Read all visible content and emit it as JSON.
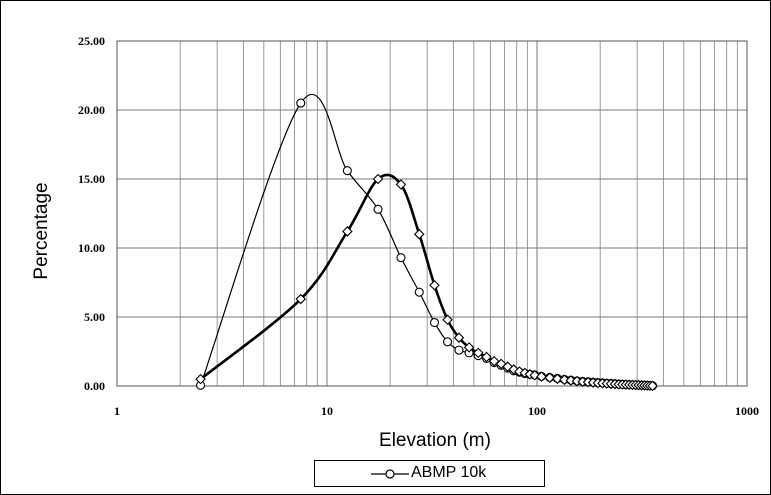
{
  "chart_data": {
    "type": "line",
    "title": "",
    "xlabel": "Elevation (m)",
    "ylabel": "Percentage",
    "x_scale": "log",
    "xlim": [
      1,
      1000
    ],
    "ylim": [
      0,
      25
    ],
    "x_ticks": [
      "1",
      "10",
      "100",
      "1000"
    ],
    "y_ticks": [
      "0.00",
      "5.00",
      "10.00",
      "15.00",
      "20.00",
      "25.00"
    ],
    "grid": true,
    "legend_position": "bottom",
    "series": [
      {
        "name": "ABMP 10k",
        "marker": "circle",
        "line": "thin",
        "x": [
          2.5,
          7.5,
          12.5,
          17.5,
          22.5,
          27.5,
          32.5,
          37.5,
          42.5,
          47.5,
          52.5,
          57.5,
          62.5,
          67.5,
          72.5,
          77.5,
          82.5,
          87.5,
          92.5,
          97.5,
          105,
          115,
          125,
          135,
          145,
          155,
          165,
          175,
          185,
          195,
          205,
          215,
          225,
          235,
          245,
          255,
          265,
          275,
          285,
          295,
          305,
          315,
          325,
          335,
          345,
          355
        ],
        "y": [
          0.05,
          20.5,
          15.6,
          12.8,
          9.3,
          6.8,
          4.6,
          3.2,
          2.6,
          2.4,
          2.2,
          2.0,
          1.7,
          1.5,
          1.3,
          1.1,
          1.0,
          0.9,
          0.85,
          0.8,
          0.7,
          0.62,
          0.55,
          0.48,
          0.42,
          0.37,
          0.33,
          0.3,
          0.27,
          0.24,
          0.22,
          0.2,
          0.18,
          0.16,
          0.14,
          0.12,
          0.11,
          0.1,
          0.09,
          0.08,
          0.07,
          0.06,
          0.05,
          0.04,
          0.03,
          0.02
        ]
      },
      {
        "name": "",
        "marker": "diamond",
        "line": "thick",
        "x": [
          2.5,
          7.5,
          12.5,
          17.5,
          22.5,
          27.5,
          32.5,
          37.5,
          42.5,
          47.5,
          52.5,
          57.5,
          62.5,
          67.5,
          72.5,
          77.5,
          82.5,
          87.5,
          92.5,
          97.5,
          105,
          115,
          125,
          135,
          145,
          155,
          165,
          175,
          185,
          195,
          205,
          215,
          225,
          235,
          245,
          255,
          265,
          275,
          285,
          295,
          305,
          315,
          325,
          335,
          345,
          355
        ],
        "y": [
          0.5,
          6.3,
          11.2,
          15.0,
          14.6,
          11.0,
          7.3,
          4.8,
          3.5,
          2.8,
          2.4,
          2.1,
          1.8,
          1.6,
          1.4,
          1.2,
          1.05,
          0.95,
          0.85,
          0.78,
          0.68,
          0.6,
          0.52,
          0.45,
          0.4,
          0.35,
          0.31,
          0.28,
          0.25,
          0.22,
          0.2,
          0.18,
          0.16,
          0.14,
          0.12,
          0.11,
          0.1,
          0.09,
          0.08,
          0.07,
          0.06,
          0.05,
          0.04,
          0.03,
          0.02,
          0.01
        ]
      }
    ]
  },
  "legend": {
    "label": "ABMP 10k"
  }
}
